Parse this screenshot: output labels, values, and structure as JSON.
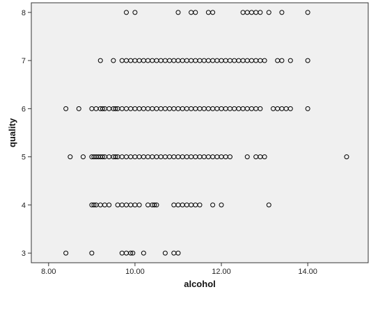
{
  "chart_data": {
    "type": "scatter",
    "title": "",
    "xlabel": "alcohol",
    "ylabel": "quality",
    "xlim": [
      7.6,
      15.4
    ],
    "ylim": [
      2.8,
      8.2
    ],
    "x_ticks": [
      8,
      10,
      12,
      14
    ],
    "x_tick_labels": [
      "8.00",
      "10.00",
      "12.00",
      "14.00"
    ],
    "y_ticks": [
      3,
      4,
      5,
      6,
      7,
      8
    ],
    "y_tick_labels": [
      "3",
      "4",
      "5",
      "6",
      "7",
      "8"
    ],
    "grid": false,
    "plot_background": "#f0f0f0",
    "marker": "open-circle",
    "marker_color": "#000000",
    "series": [
      {
        "points": [
          {
            "x": 8.4,
            "y": 3
          },
          {
            "x": 9.0,
            "y": 3
          },
          {
            "x": 9.7,
            "y": 3
          },
          {
            "x": 9.8,
            "y": 3
          },
          {
            "x": 9.9,
            "y": 3
          },
          {
            "x": 9.95,
            "y": 3
          },
          {
            "x": 10.2,
            "y": 3
          },
          {
            "x": 10.7,
            "y": 3
          },
          {
            "x": 10.9,
            "y": 3
          },
          {
            "x": 11.0,
            "y": 3
          },
          {
            "x": 9.0,
            "y": 4
          },
          {
            "x": 9.05,
            "y": 4
          },
          {
            "x": 9.1,
            "y": 4
          },
          {
            "x": 9.2,
            "y": 4
          },
          {
            "x": 9.3,
            "y": 4
          },
          {
            "x": 9.4,
            "y": 4
          },
          {
            "x": 9.6,
            "y": 4
          },
          {
            "x": 9.7,
            "y": 4
          },
          {
            "x": 9.8,
            "y": 4
          },
          {
            "x": 9.9,
            "y": 4
          },
          {
            "x": 10.0,
            "y": 4
          },
          {
            "x": 10.1,
            "y": 4
          },
          {
            "x": 10.3,
            "y": 4
          },
          {
            "x": 10.4,
            "y": 4
          },
          {
            "x": 10.45,
            "y": 4
          },
          {
            "x": 10.5,
            "y": 4
          },
          {
            "x": 10.9,
            "y": 4
          },
          {
            "x": 11.0,
            "y": 4
          },
          {
            "x": 11.1,
            "y": 4
          },
          {
            "x": 11.2,
            "y": 4
          },
          {
            "x": 11.3,
            "y": 4
          },
          {
            "x": 11.4,
            "y": 4
          },
          {
            "x": 11.5,
            "y": 4
          },
          {
            "x": 11.8,
            "y": 4
          },
          {
            "x": 12.0,
            "y": 4
          },
          {
            "x": 13.1,
            "y": 4
          },
          {
            "x": 8.5,
            "y": 5
          },
          {
            "x": 8.8,
            "y": 5
          },
          {
            "x": 9.0,
            "y": 5
          },
          {
            "x": 9.05,
            "y": 5
          },
          {
            "x": 9.1,
            "y": 5
          },
          {
            "x": 9.15,
            "y": 5
          },
          {
            "x": 9.2,
            "y": 5
          },
          {
            "x": 9.25,
            "y": 5
          },
          {
            "x": 9.3,
            "y": 5
          },
          {
            "x": 9.4,
            "y": 5
          },
          {
            "x": 9.5,
            "y": 5
          },
          {
            "x": 9.55,
            "y": 5
          },
          {
            "x": 9.6,
            "y": 5
          },
          {
            "x": 9.7,
            "y": 5
          },
          {
            "x": 9.8,
            "y": 5
          },
          {
            "x": 9.9,
            "y": 5
          },
          {
            "x": 10.0,
            "y": 5
          },
          {
            "x": 10.1,
            "y": 5
          },
          {
            "x": 10.2,
            "y": 5
          },
          {
            "x": 10.3,
            "y": 5
          },
          {
            "x": 10.4,
            "y": 5
          },
          {
            "x": 10.5,
            "y": 5
          },
          {
            "x": 10.6,
            "y": 5
          },
          {
            "x": 10.7,
            "y": 5
          },
          {
            "x": 10.8,
            "y": 5
          },
          {
            "x": 10.9,
            "y": 5
          },
          {
            "x": 11.0,
            "y": 5
          },
          {
            "x": 11.1,
            "y": 5
          },
          {
            "x": 11.2,
            "y": 5
          },
          {
            "x": 11.3,
            "y": 5
          },
          {
            "x": 11.4,
            "y": 5
          },
          {
            "x": 11.5,
            "y": 5
          },
          {
            "x": 11.6,
            "y": 5
          },
          {
            "x": 11.7,
            "y": 5
          },
          {
            "x": 11.8,
            "y": 5
          },
          {
            "x": 11.9,
            "y": 5
          },
          {
            "x": 12.0,
            "y": 5
          },
          {
            "x": 12.1,
            "y": 5
          },
          {
            "x": 12.2,
            "y": 5
          },
          {
            "x": 12.6,
            "y": 5
          },
          {
            "x": 12.8,
            "y": 5
          },
          {
            "x": 12.9,
            "y": 5
          },
          {
            "x": 13.0,
            "y": 5
          },
          {
            "x": 14.9,
            "y": 5
          },
          {
            "x": 8.4,
            "y": 6
          },
          {
            "x": 8.7,
            "y": 6
          },
          {
            "x": 9.0,
            "y": 6
          },
          {
            "x": 9.1,
            "y": 6
          },
          {
            "x": 9.2,
            "y": 6
          },
          {
            "x": 9.25,
            "y": 6
          },
          {
            "x": 9.3,
            "y": 6
          },
          {
            "x": 9.4,
            "y": 6
          },
          {
            "x": 9.5,
            "y": 6
          },
          {
            "x": 9.55,
            "y": 6
          },
          {
            "x": 9.6,
            "y": 6
          },
          {
            "x": 9.7,
            "y": 6
          },
          {
            "x": 9.8,
            "y": 6
          },
          {
            "x": 9.9,
            "y": 6
          },
          {
            "x": 10.0,
            "y": 6
          },
          {
            "x": 10.1,
            "y": 6
          },
          {
            "x": 10.2,
            "y": 6
          },
          {
            "x": 10.3,
            "y": 6
          },
          {
            "x": 10.4,
            "y": 6
          },
          {
            "x": 10.5,
            "y": 6
          },
          {
            "x": 10.6,
            "y": 6
          },
          {
            "x": 10.7,
            "y": 6
          },
          {
            "x": 10.8,
            "y": 6
          },
          {
            "x": 10.9,
            "y": 6
          },
          {
            "x": 11.0,
            "y": 6
          },
          {
            "x": 11.1,
            "y": 6
          },
          {
            "x": 11.2,
            "y": 6
          },
          {
            "x": 11.3,
            "y": 6
          },
          {
            "x": 11.4,
            "y": 6
          },
          {
            "x": 11.5,
            "y": 6
          },
          {
            "x": 11.6,
            "y": 6
          },
          {
            "x": 11.7,
            "y": 6
          },
          {
            "x": 11.8,
            "y": 6
          },
          {
            "x": 11.9,
            "y": 6
          },
          {
            "x": 12.0,
            "y": 6
          },
          {
            "x": 12.1,
            "y": 6
          },
          {
            "x": 12.2,
            "y": 6
          },
          {
            "x": 12.3,
            "y": 6
          },
          {
            "x": 12.4,
            "y": 6
          },
          {
            "x": 12.5,
            "y": 6
          },
          {
            "x": 12.6,
            "y": 6
          },
          {
            "x": 12.7,
            "y": 6
          },
          {
            "x": 12.8,
            "y": 6
          },
          {
            "x": 12.9,
            "y": 6
          },
          {
            "x": 13.2,
            "y": 6
          },
          {
            "x": 13.3,
            "y": 6
          },
          {
            "x": 13.4,
            "y": 6
          },
          {
            "x": 13.5,
            "y": 6
          },
          {
            "x": 13.6,
            "y": 6
          },
          {
            "x": 14.0,
            "y": 6
          },
          {
            "x": 9.2,
            "y": 7
          },
          {
            "x": 9.5,
            "y": 7
          },
          {
            "x": 9.7,
            "y": 7
          },
          {
            "x": 9.8,
            "y": 7
          },
          {
            "x": 9.9,
            "y": 7
          },
          {
            "x": 10.0,
            "y": 7
          },
          {
            "x": 10.1,
            "y": 7
          },
          {
            "x": 10.2,
            "y": 7
          },
          {
            "x": 10.3,
            "y": 7
          },
          {
            "x": 10.4,
            "y": 7
          },
          {
            "x": 10.5,
            "y": 7
          },
          {
            "x": 10.6,
            "y": 7
          },
          {
            "x": 10.7,
            "y": 7
          },
          {
            "x": 10.8,
            "y": 7
          },
          {
            "x": 10.9,
            "y": 7
          },
          {
            "x": 11.0,
            "y": 7
          },
          {
            "x": 11.1,
            "y": 7
          },
          {
            "x": 11.2,
            "y": 7
          },
          {
            "x": 11.3,
            "y": 7
          },
          {
            "x": 11.4,
            "y": 7
          },
          {
            "x": 11.5,
            "y": 7
          },
          {
            "x": 11.6,
            "y": 7
          },
          {
            "x": 11.7,
            "y": 7
          },
          {
            "x": 11.8,
            "y": 7
          },
          {
            "x": 11.9,
            "y": 7
          },
          {
            "x": 12.0,
            "y": 7
          },
          {
            "x": 12.1,
            "y": 7
          },
          {
            "x": 12.2,
            "y": 7
          },
          {
            "x": 12.3,
            "y": 7
          },
          {
            "x": 12.4,
            "y": 7
          },
          {
            "x": 12.5,
            "y": 7
          },
          {
            "x": 12.6,
            "y": 7
          },
          {
            "x": 12.7,
            "y": 7
          },
          {
            "x": 12.8,
            "y": 7
          },
          {
            "x": 12.9,
            "y": 7
          },
          {
            "x": 13.0,
            "y": 7
          },
          {
            "x": 13.3,
            "y": 7
          },
          {
            "x": 13.4,
            "y": 7
          },
          {
            "x": 13.6,
            "y": 7
          },
          {
            "x": 14.0,
            "y": 7
          },
          {
            "x": 9.8,
            "y": 8
          },
          {
            "x": 10.0,
            "y": 8
          },
          {
            "x": 11.0,
            "y": 8
          },
          {
            "x": 11.3,
            "y": 8
          },
          {
            "x": 11.4,
            "y": 8
          },
          {
            "x": 11.7,
            "y": 8
          },
          {
            "x": 11.8,
            "y": 8
          },
          {
            "x": 12.5,
            "y": 8
          },
          {
            "x": 12.6,
            "y": 8
          },
          {
            "x": 12.7,
            "y": 8
          },
          {
            "x": 12.8,
            "y": 8
          },
          {
            "x": 12.9,
            "y": 8
          },
          {
            "x": 13.1,
            "y": 8
          },
          {
            "x": 13.4,
            "y": 8
          },
          {
            "x": 14.0,
            "y": 8
          }
        ]
      }
    ]
  }
}
